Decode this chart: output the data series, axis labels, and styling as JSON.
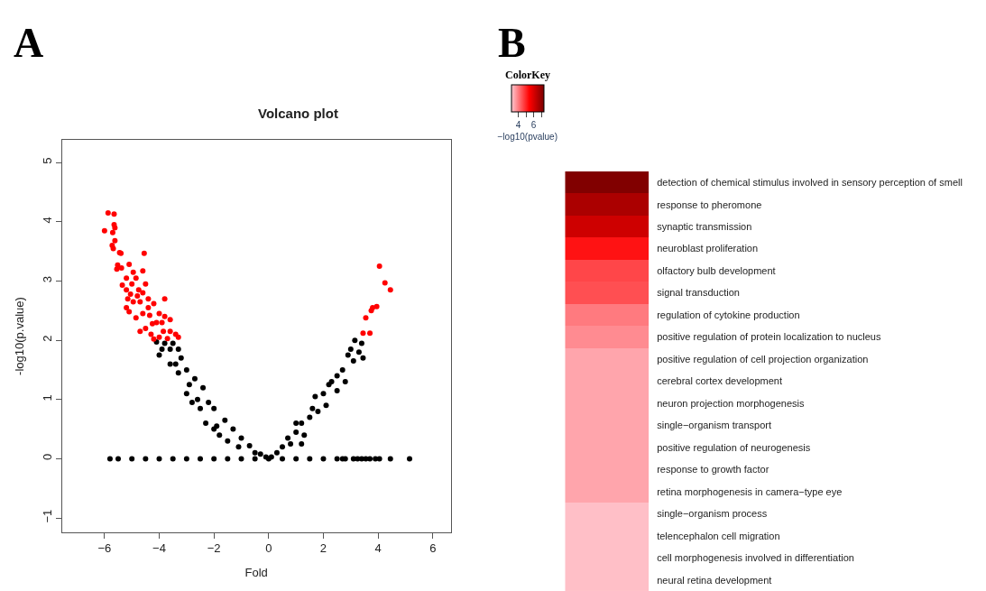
{
  "chart_data": [
    {
      "type": "scatter",
      "title": "Volcano plot",
      "xlabel": "Fold",
      "ylabel": "-log10(p.value)",
      "annotations": [
        "A"
      ],
      "xlim": [
        -7.55,
        6.65
      ],
      "xticks": [
        -6,
        -4,
        -2,
        0,
        2,
        4,
        6
      ],
      "ylim": [
        -1.24,
        5.38
      ],
      "yticks": [
        -1,
        0,
        1,
        2,
        3,
        4,
        5
      ],
      "marker": "circle",
      "series": [
        {
          "color": "#000000",
          "x": [
            -5.8,
            -5.5,
            -5.0,
            -4.5,
            -4.0,
            -3.5,
            -3.0,
            -2.5,
            -2.0,
            -1.5,
            -1.0,
            -0.5,
            0.0,
            0.5,
            1.0,
            1.5,
            2.0,
            2.5,
            2.7,
            2.8,
            3.1,
            3.25,
            3.4,
            3.55,
            3.7,
            3.9,
            4.05,
            4.45,
            5.15,
            -4.1,
            -3.8,
            -3.5,
            -3.3,
            -3.9,
            -4.0,
            -3.6,
            -3.3,
            -3.2,
            -3.0,
            -2.9,
            -3.0,
            -2.7,
            -2.6,
            -2.4,
            -2.5,
            -2.2,
            -2.3,
            -2.0,
            -1.9,
            -1.6,
            -1.8,
            -1.3,
            -1.5,
            -1.0,
            -1.1,
            -0.7,
            -0.5,
            -0.3,
            -0.1,
            -3.6,
            -3.4,
            -2.8,
            -2.0,
            0.1,
            0.3,
            0.5,
            0.7,
            0.8,
            1.0,
            1.2,
            1.3,
            1.5,
            1.6,
            1.7,
            1.8,
            2.0,
            2.1,
            2.2,
            2.3,
            2.5,
            2.5,
            2.7,
            2.8,
            2.9,
            3.0,
            3.1,
            3.15,
            3.3,
            3.4,
            3.45,
            1.2,
            1.0
          ],
          "values": [
            0,
            0,
            0,
            0,
            0,
            0,
            0,
            0,
            0,
            0,
            0,
            0,
            0,
            0,
            0,
            0,
            0,
            0,
            0,
            0,
            0,
            0,
            0,
            0,
            0,
            0,
            0,
            0,
            0,
            1.97,
            1.95,
            1.95,
            1.85,
            1.85,
            1.75,
            1.6,
            1.45,
            1.7,
            1.5,
            1.25,
            1.1,
            1.35,
            1.0,
            1.2,
            0.85,
            0.95,
            0.6,
            0.85,
            0.55,
            0.65,
            0.4,
            0.5,
            0.3,
            0.35,
            0.2,
            0.22,
            0.1,
            0.08,
            0.03,
            1.85,
            1.6,
            0.95,
            0.5,
            0.03,
            0.1,
            0.2,
            0.35,
            0.25,
            0.45,
            0.6,
            0.4,
            0.7,
            0.85,
            1.05,
            0.8,
            1.1,
            0.9,
            1.25,
            1.3,
            1.4,
            1.15,
            1.5,
            1.3,
            1.75,
            1.85,
            1.65,
            2.0,
            1.8,
            1.95,
            1.7,
            0.25,
            0.6
          ]
        },
        {
          "color": "#ff0000",
          "x": [
            -6.0,
            -5.87,
            -5.65,
            -5.7,
            -5.65,
            -5.62,
            -5.62,
            -5.72,
            -5.68,
            -5.4,
            -5.45,
            -5.52,
            -5.55,
            -5.38,
            -5.1,
            -4.55,
            -4.95,
            -4.6,
            -5.2,
            -4.85,
            -5.35,
            -5.2,
            -5.0,
            -4.75,
            -4.5,
            -5.15,
            -5.05,
            -4.8,
            -4.6,
            -4.4,
            -3.8,
            -5.2,
            -4.95,
            -4.7,
            -4.4,
            -4.2,
            -5.1,
            -4.85,
            -4.6,
            -4.35,
            -4.0,
            -3.8,
            -4.7,
            -4.5,
            -4.25,
            -4.1,
            -3.9,
            -3.6,
            -4.3,
            -4.0,
            -3.85,
            -3.6,
            -3.4,
            -3.3,
            -4.2,
            -3.7,
            4.05,
            4.25,
            4.45,
            3.8,
            3.95,
            3.75,
            3.55,
            3.45,
            3.7
          ],
          "values": [
            3.85,
            4.15,
            4.13,
            3.82,
            3.95,
            3.9,
            3.68,
            3.6,
            3.55,
            3.47,
            3.48,
            3.27,
            3.2,
            3.22,
            3.28,
            3.47,
            3.15,
            3.17,
            3.05,
            3.05,
            2.93,
            2.85,
            2.95,
            2.85,
            2.95,
            2.7,
            2.78,
            2.75,
            2.8,
            2.7,
            2.7,
            2.55,
            2.65,
            2.65,
            2.55,
            2.62,
            2.48,
            2.38,
            2.45,
            2.42,
            2.45,
            2.4,
            2.15,
            2.2,
            2.28,
            2.3,
            2.3,
            2.35,
            2.1,
            2.05,
            2.15,
            2.15,
            2.1,
            2.05,
            2.02,
            2.03,
            3.25,
            2.97,
            2.85,
            2.55,
            2.57,
            2.5,
            2.38,
            2.12,
            2.12
          ]
        }
      ]
    },
    {
      "type": "heatmap",
      "annotations": [
        "B",
        "ColorKey"
      ],
      "clabel": "−log10(pvalue)",
      "categories": [
        null
      ],
      "y_categories": [
        "detection of chemical stimulus involved in sensory perception of smell",
        "response to pheromone",
        "synaptic transmission",
        "neuroblast proliferation",
        "olfactory bulb development",
        "signal transduction",
        "regulation of cytokine production",
        "positive regulation of protein localization to nucleus",
        "positive regulation of cell projection organization",
        "cerebral cortex development",
        "neuron projection morphogenesis",
        "single−organism transport",
        "positive regulation of neurogenesis",
        "response to growth factor",
        "retina morphogenesis in camera−type eye",
        "single−organism process",
        "telencephalon cell migration",
        "cell morphogenesis involved in differentiation",
        "neural retina development"
      ],
      "cells": [
        [
          7.2
        ],
        [
          6.6
        ],
        [
          6.1
        ],
        [
          5.2
        ],
        [
          4.6
        ],
        [
          4.5
        ],
        [
          4.0
        ],
        [
          3.8
        ],
        [
          3.5
        ],
        [
          3.5
        ],
        [
          3.5
        ],
        [
          3.5
        ],
        [
          3.5
        ],
        [
          3.5
        ],
        [
          3.5
        ],
        [
          3.2
        ],
        [
          3.2
        ],
        [
          3.2
        ],
        [
          3.2
        ]
      ],
      "clim": [
        3.1,
        7.3
      ],
      "cticks": [
        4,
        {
          "value": 5,
          "label": null
        },
        6,
        {
          "value": 7,
          "label": null
        }
      ]
    }
  ]
}
